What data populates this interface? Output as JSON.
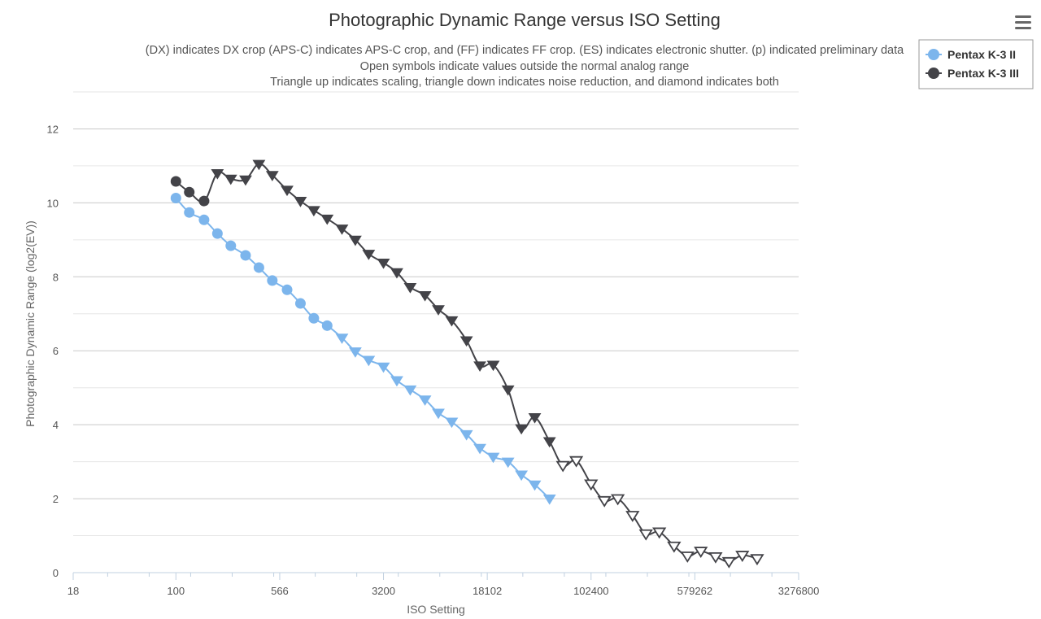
{
  "chart_data": {
    "type": "line",
    "title": "Photographic Dynamic Range versus ISO Setting",
    "subtitle": [
      "(DX) indicates DX crop (APS-C) indicates APS-C crop, and (FF) indicates FF crop. (ES) indicates electronic shutter. (p) indicated preliminary data",
      "Open symbols indicate values outside the normal analog range",
      "Triangle up indicates scaling, triangle down indicates noise reduction, and diamond indicates both"
    ],
    "xlabel": "ISO Setting",
    "ylabel": "Photographic Dynamic Range (log2(EV))",
    "xscale": "log2",
    "xlim": [
      18,
      3276800
    ],
    "ylim": [
      0,
      13
    ],
    "x_tick_labels": [
      "18",
      "100",
      "566",
      "3200",
      "18102",
      "102400",
      "579262",
      "3276800"
    ],
    "x_ticks": [
      18,
      100,
      566,
      3200,
      18102,
      102400,
      579262,
      3276800
    ],
    "y_ticks": [
      0,
      2,
      4,
      6,
      8,
      10,
      12
    ],
    "grid": true,
    "legend": "top-right",
    "series": [
      {
        "name": "Pentax K-3 II",
        "color": "#7cb5ec",
        "points": [
          [
            100,
            10.13,
            "circle"
          ],
          [
            125,
            9.74,
            "circle"
          ],
          [
            160,
            9.54,
            "circle"
          ],
          [
            200,
            9.17,
            "circle"
          ],
          [
            250,
            8.84,
            "circle"
          ],
          [
            320,
            8.58,
            "circle"
          ],
          [
            400,
            8.25,
            "circle"
          ],
          [
            500,
            7.9,
            "circle"
          ],
          [
            640,
            7.65,
            "circle"
          ],
          [
            800,
            7.28,
            "circle"
          ],
          [
            1000,
            6.88,
            "circle"
          ],
          [
            1250,
            6.68,
            "circle"
          ],
          [
            1600,
            6.35,
            "down"
          ],
          [
            2000,
            5.98,
            "down"
          ],
          [
            2500,
            5.75,
            "down"
          ],
          [
            3200,
            5.57,
            "down"
          ],
          [
            4000,
            5.2,
            "down"
          ],
          [
            5000,
            4.95,
            "down"
          ],
          [
            6400,
            4.68,
            "down"
          ],
          [
            8000,
            4.32,
            "down"
          ],
          [
            10000,
            4.08,
            "down"
          ],
          [
            12800,
            3.74,
            "down"
          ],
          [
            16000,
            3.37,
            "down"
          ],
          [
            20000,
            3.13,
            "down"
          ],
          [
            25600,
            3.0,
            "down"
          ],
          [
            32000,
            2.65,
            "down"
          ],
          [
            40000,
            2.38,
            "down"
          ],
          [
            51200,
            2.0,
            "down"
          ]
        ]
      },
      {
        "name": "Pentax K-3 III",
        "color": "#434348",
        "points": [
          [
            100,
            10.58,
            "circle"
          ],
          [
            125,
            10.29,
            "circle"
          ],
          [
            160,
            10.05,
            "circle"
          ],
          [
            200,
            10.8,
            "down"
          ],
          [
            250,
            10.65,
            "down"
          ],
          [
            320,
            10.63,
            "down"
          ],
          [
            400,
            11.05,
            "down"
          ],
          [
            500,
            10.75,
            "down"
          ],
          [
            640,
            10.35,
            "down"
          ],
          [
            800,
            10.05,
            "down"
          ],
          [
            1000,
            9.8,
            "down"
          ],
          [
            1250,
            9.57,
            "down"
          ],
          [
            1600,
            9.3,
            "down"
          ],
          [
            2000,
            9.0,
            "down"
          ],
          [
            2500,
            8.62,
            "down"
          ],
          [
            3200,
            8.38,
            "down"
          ],
          [
            4000,
            8.12,
            "down"
          ],
          [
            5000,
            7.72,
            "down"
          ],
          [
            6400,
            7.5,
            "down"
          ],
          [
            8000,
            7.12,
            "down"
          ],
          [
            10000,
            6.82,
            "down"
          ],
          [
            12800,
            6.28,
            "down"
          ],
          [
            16000,
            5.6,
            "down"
          ],
          [
            20000,
            5.62,
            "down"
          ],
          [
            25600,
            4.95,
            "down"
          ],
          [
            32000,
            3.9,
            "down"
          ],
          [
            40000,
            4.2,
            "down"
          ],
          [
            51200,
            3.55,
            "down"
          ],
          [
            64000,
            2.9,
            "open-down"
          ],
          [
            80000,
            3.03,
            "open-down"
          ],
          [
            102400,
            2.4,
            "open-down"
          ],
          [
            128000,
            1.95,
            "open-down"
          ],
          [
            160000,
            2.0,
            "open-down"
          ],
          [
            204800,
            1.55,
            "open-down"
          ],
          [
            256000,
            1.05,
            "open-down"
          ],
          [
            320000,
            1.1,
            "open-down"
          ],
          [
            409600,
            0.72,
            "open-down"
          ],
          [
            512000,
            0.45,
            "open-down"
          ],
          [
            640000,
            0.58,
            "open-down"
          ],
          [
            819200,
            0.43,
            "open-down"
          ],
          [
            1024000,
            0.3,
            "open-down"
          ],
          [
            1280000,
            0.47,
            "open-down"
          ],
          [
            1638400,
            0.38,
            "open-down"
          ]
        ]
      }
    ]
  }
}
